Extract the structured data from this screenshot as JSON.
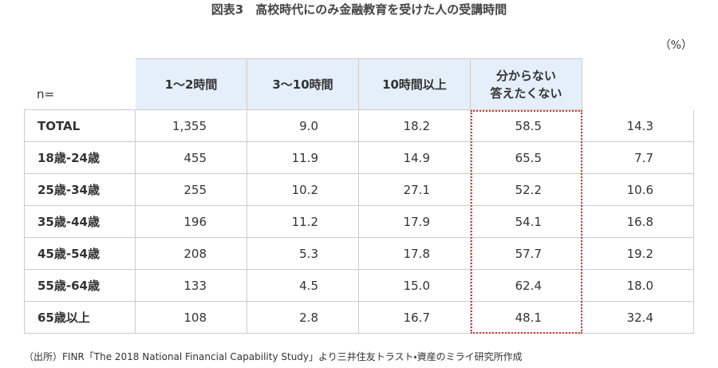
{
  "title": "図表3　高校時代にのみ金融教育を受けた人の受講時間",
  "unit": "（%）",
  "table": {
    "header": [
      "n=",
      "1〜2時間",
      "3〜10時間",
      "10時間以上",
      "分からない\n答えたくない"
    ],
    "rows": [
      [
        "TOTAL",
        "1,355",
        "9.0",
        "18.2",
        "58.5",
        "14.3"
      ],
      [
        "18歳-24歳",
        "455",
        "11.9",
        "14.9",
        "65.5",
        "7.7"
      ],
      [
        "25歳-34歳",
        "255",
        "10.2",
        "27.1",
        "52.2",
        "10.6"
      ],
      [
        "35歳-44歳",
        "196",
        "11.2",
        "17.9",
        "54.1",
        "16.8"
      ],
      [
        "45歳-54歳",
        "208",
        "5.3",
        "17.8",
        "57.7",
        "19.2"
      ],
      [
        "55歳-64歳",
        "133",
        "4.5",
        "15.0",
        "62.4",
        "18.0"
      ],
      [
        "65歳以上",
        "108",
        "2.8",
        "16.7",
        "48.1",
        "32.4"
      ]
    ]
  },
  "source": "（出所）FINR「The 2018 National Financial Capability Study」より三井住友トラスト・資産のミライ研究所作成"
}
